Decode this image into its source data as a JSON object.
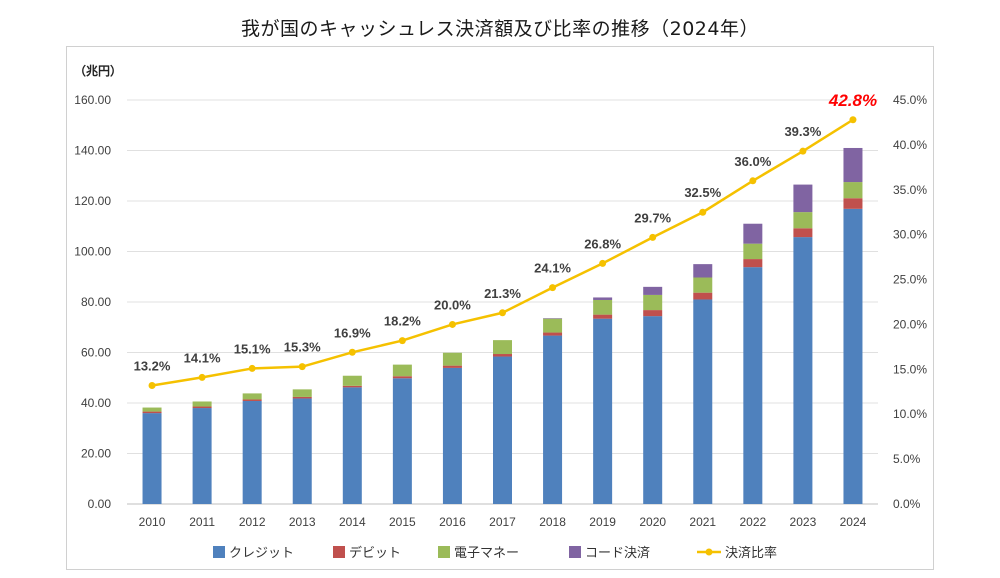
{
  "title": "我が国のキャッシュレス決済額及び比率の推移（2024年）",
  "colors": {
    "credit": "#4f81bd",
    "debit": "#c0504d",
    "emoney": "#9bbb59",
    "code": "#8064a2",
    "ratio": "#f5c100",
    "highlight": "#ff0000"
  },
  "chart_data": {
    "type": "bar",
    "stacked": true,
    "unit_label": "（兆円）",
    "categories": [
      "2010",
      "2011",
      "2012",
      "2013",
      "2014",
      "2015",
      "2016",
      "2017",
      "2018",
      "2019",
      "2020",
      "2021",
      "2022",
      "2023",
      "2024"
    ],
    "series": [
      {
        "name": "クレジット",
        "values": [
          36.0,
          38.0,
          40.8,
          41.8,
          46.2,
          49.8,
          53.9,
          58.4,
          66.7,
          73.4,
          74.4,
          81.0,
          93.8,
          105.7,
          116.9
        ]
      },
      {
        "name": "デビット",
        "values": [
          0.6,
          0.6,
          0.6,
          0.6,
          0.6,
          0.8,
          0.9,
          1.0,
          1.2,
          1.6,
          2.4,
          2.7,
          3.2,
          3.5,
          4.2
        ]
      },
      {
        "name": "電子マネー",
        "values": [
          1.6,
          2.0,
          2.4,
          3.0,
          4.0,
          4.6,
          5.1,
          5.5,
          5.5,
          5.8,
          6.0,
          6.0,
          6.1,
          6.4,
          6.4
        ]
      },
      {
        "name": "コード決済",
        "values": [
          0,
          0,
          0,
          0,
          0,
          0,
          0,
          0,
          0.2,
          1.0,
          3.2,
          5.3,
          7.9,
          10.9,
          13.5
        ]
      }
    ],
    "line_series": {
      "name": "決済比率",
      "values": [
        13.2,
        14.1,
        15.1,
        15.3,
        16.9,
        18.2,
        20.0,
        21.3,
        24.1,
        26.8,
        29.7,
        32.5,
        36.0,
        39.3,
        42.8
      ],
      "labels": [
        "13.2%",
        "14.1%",
        "15.1%",
        "15.3%",
        "16.9%",
        "18.2%",
        "20.0%",
        "21.3%",
        "24.1%",
        "26.8%",
        "29.7%",
        "32.5%",
        "36.0%",
        "39.3%",
        "42.8%"
      ],
      "highlight_last": true
    },
    "y_left": {
      "min": 0,
      "max": 160,
      "ticks": [
        "0.00",
        "20.00",
        "40.00",
        "60.00",
        "80.00",
        "100.00",
        "120.00",
        "140.00",
        "160.00"
      ]
    },
    "y_right": {
      "min": 0,
      "max": 45,
      "ticks": [
        "0.0%",
        "5.0%",
        "10.0%",
        "15.0%",
        "20.0%",
        "25.0%",
        "30.0%",
        "35.0%",
        "40.0%",
        "45.0%"
      ]
    },
    "grid": true,
    "legend_position": "bottom"
  }
}
